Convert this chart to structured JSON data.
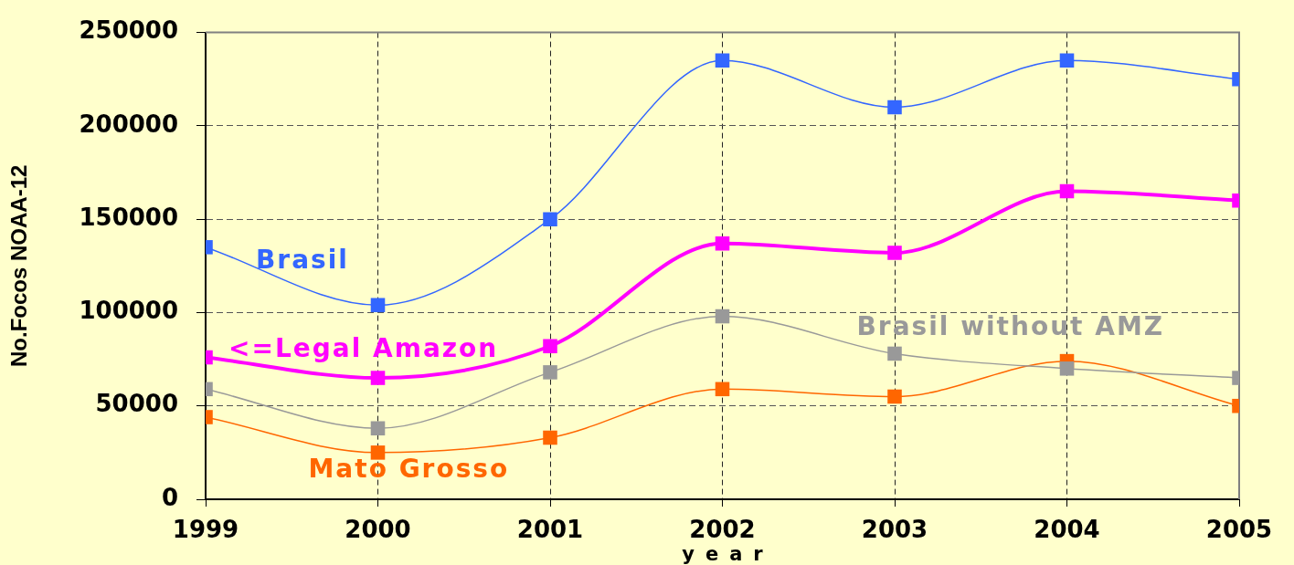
{
  "chart_data": {
    "type": "line",
    "xlabel": "year",
    "ylabel": "No.Focos NOAA-12",
    "x": [
      1999,
      2000,
      2001,
      2002,
      2003,
      2004,
      2005
    ],
    "xlim": [
      1999,
      2005
    ],
    "xticks": [
      1999,
      2000,
      2001,
      2002,
      2003,
      2004,
      2005
    ],
    "ylim": [
      0,
      250000
    ],
    "yticks": [
      0,
      50000,
      100000,
      150000,
      200000,
      250000
    ],
    "grid": true,
    "marker": "square",
    "series": [
      {
        "name": "Brasil",
        "color": "#3366ff",
        "values": [
          135000,
          104000,
          150000,
          235000,
          210000,
          235000,
          225000
        ]
      },
      {
        "name": "<=Legal Amazon",
        "color": "#ff00ff",
        "values": [
          76000,
          65000,
          82000,
          137000,
          132000,
          165000,
          160000
        ]
      },
      {
        "name": "Brasil without AMZ",
        "color": "#999999",
        "values": [
          59000,
          38000,
          68000,
          98000,
          78000,
          70000,
          65000
        ]
      },
      {
        "name": "Mato Grosso",
        "color": "#ff6600",
        "values": [
          44000,
          25000,
          33000,
          59000,
          55000,
          74000,
          50000
        ]
      }
    ]
  }
}
